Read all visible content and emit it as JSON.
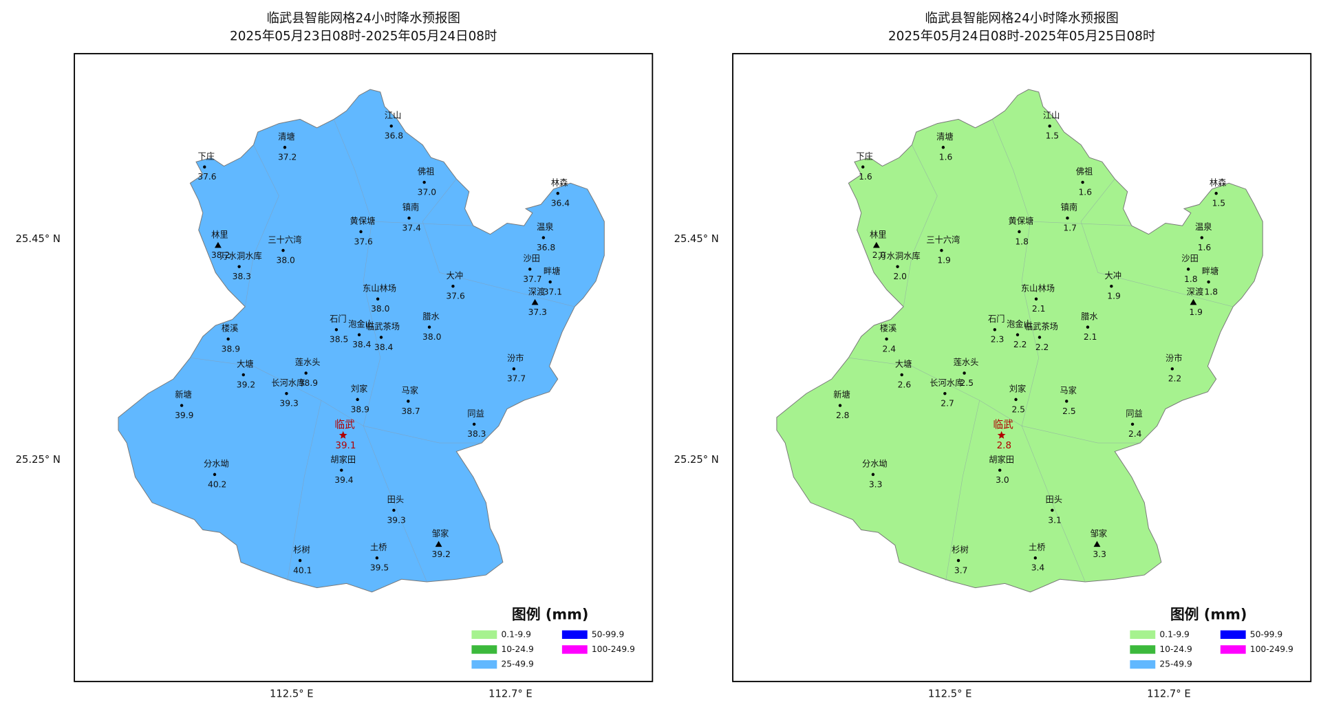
{
  "panels": [
    {
      "title": "临武县智能网格24小时降水预报图",
      "subtitle": "2025年05月23日08时-2025年05月24日08时",
      "color": "#61b8ff",
      "stations": [
        {
          "name": "清塘",
          "value": "37.2"
        },
        {
          "name": "下庄",
          "value": "37.6"
        },
        {
          "name": "江山",
          "value": "36.8"
        },
        {
          "name": "佛祖",
          "value": "37.0"
        },
        {
          "name": "林森",
          "value": "36.4"
        },
        {
          "name": "镇南",
          "value": "37.4"
        },
        {
          "name": "黄保塘",
          "value": "37.6"
        },
        {
          "name": "温泉",
          "value": "36.8"
        },
        {
          "name": "林里",
          "value": "38.2"
        },
        {
          "name": "三十六湾",
          "value": "38.0"
        },
        {
          "name": "万水洞水库",
          "value": "38.3"
        },
        {
          "name": "沙田",
          "value": "37.7"
        },
        {
          "name": "畔塘",
          "value": "37.1"
        },
        {
          "name": "大冲",
          "value": "37.6"
        },
        {
          "name": "东山林场",
          "value": "38.0"
        },
        {
          "name": "深渡",
          "value": "37.3"
        },
        {
          "name": "石门",
          "value": "38.5"
        },
        {
          "name": "泡金山",
          "value": "38.4"
        },
        {
          "name": "临武茶场",
          "value": "38.4"
        },
        {
          "name": "腊水",
          "value": "38.0"
        },
        {
          "name": "楼溪",
          "value": "38.9"
        },
        {
          "name": "大塘",
          "value": "39.2"
        },
        {
          "name": "莲水头",
          "value": "38.9"
        },
        {
          "name": "汾市",
          "value": "37.7"
        },
        {
          "name": "长河水库",
          "value": "39.3"
        },
        {
          "name": "新塘",
          "value": "39.9"
        },
        {
          "name": "刘家",
          "value": "38.9"
        },
        {
          "name": "马家",
          "value": "38.7"
        },
        {
          "name": "临武",
          "value": "39.1"
        },
        {
          "name": "同益",
          "value": "38.3"
        },
        {
          "name": "胡家田",
          "value": "39.4"
        },
        {
          "name": "分水坳",
          "value": "40.2"
        },
        {
          "name": "田头",
          "value": "39.3"
        },
        {
          "name": "邹家",
          "value": "39.2"
        },
        {
          "name": "杉树",
          "value": "40.1"
        },
        {
          "name": "土桥",
          "value": "39.5"
        }
      ]
    },
    {
      "title": "临武县智能网格24小时降水预报图",
      "subtitle": "2025年05月24日08时-2025年05月25日08时",
      "color": "#a6f28f",
      "stations": [
        {
          "name": "清塘",
          "value": "1.6"
        },
        {
          "name": "下庄",
          "value": "1.6"
        },
        {
          "name": "江山",
          "value": "1.5"
        },
        {
          "name": "佛祖",
          "value": "1.6"
        },
        {
          "name": "林森",
          "value": "1.5"
        },
        {
          "name": "镇南",
          "value": "1.7"
        },
        {
          "name": "黄保塘",
          "value": "1.8"
        },
        {
          "name": "温泉",
          "value": "1.6"
        },
        {
          "name": "林里",
          "value": "2.0"
        },
        {
          "name": "三十六湾",
          "value": "1.9"
        },
        {
          "name": "万水洞水库",
          "value": "2.0"
        },
        {
          "name": "沙田",
          "value": "1.8"
        },
        {
          "name": "畔塘",
          "value": "1.8"
        },
        {
          "name": "大冲",
          "value": "1.9"
        },
        {
          "name": "东山林场",
          "value": "2.1"
        },
        {
          "name": "深渡",
          "value": "1.9"
        },
        {
          "name": "石门",
          "value": "2.3"
        },
        {
          "name": "泡金山",
          "value": "2.2"
        },
        {
          "name": "临武茶场",
          "value": "2.2"
        },
        {
          "name": "腊水",
          "value": "2.1"
        },
        {
          "name": "楼溪",
          "value": "2.4"
        },
        {
          "name": "大塘",
          "value": "2.6"
        },
        {
          "name": "莲水头",
          "value": "2.5"
        },
        {
          "name": "汾市",
          "value": "2.2"
        },
        {
          "name": "长河水库",
          "value": "2.7"
        },
        {
          "name": "新塘",
          "value": "2.8"
        },
        {
          "name": "刘家",
          "value": "2.5"
        },
        {
          "name": "马家",
          "value": "2.5"
        },
        {
          "name": "临武",
          "value": "2.8"
        },
        {
          "name": "同益",
          "value": "2.4"
        },
        {
          "name": "胡家田",
          "value": "3.0"
        },
        {
          "name": "分水坳",
          "value": "3.3"
        },
        {
          "name": "田头",
          "value": "3.1"
        },
        {
          "name": "邹家",
          "value": "3.3"
        },
        {
          "name": "杉树",
          "value": "3.7"
        },
        {
          "name": "土桥",
          "value": "3.4"
        }
      ]
    }
  ],
  "axes": {
    "lat": [
      "25.45° N",
      "25.25° N"
    ],
    "lon": [
      "112.5° E",
      "112.7° E"
    ]
  },
  "legend": {
    "title": "图例 (mm)",
    "items": [
      {
        "label": "0.1-9.9",
        "color": "#a6f28f"
      },
      {
        "label": "10-24.9",
        "color": "#3cb93c"
      },
      {
        "label": "25-49.9",
        "color": "#61b8ff"
      },
      {
        "label": "50-99.9",
        "color": "#0000ff"
      },
      {
        "label": "100-249.9",
        "color": "#ff00ff"
      }
    ]
  }
}
